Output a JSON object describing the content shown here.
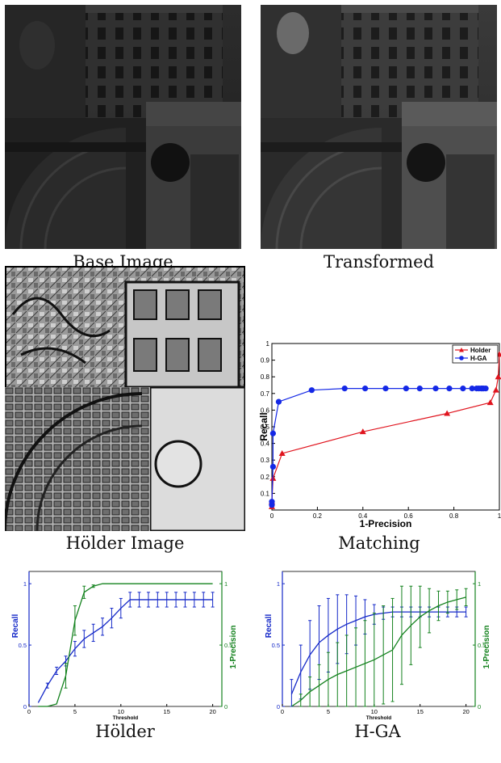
{
  "captions": {
    "base": "Base Image",
    "transformed": "Transformed",
    "holder_image": "Hölder Image",
    "matching": "Matching",
    "holder": "Hölder",
    "hga": "H-GA"
  },
  "chart_data": [
    {
      "type": "line",
      "panel": "Matching",
      "xlabel": "1-Precision",
      "ylabel": "Recall",
      "xlim": [
        0,
        1
      ],
      "ylim": [
        0,
        1
      ],
      "xticks": [
        "0",
        "0.2",
        "0.4",
        "0.6",
        "0.8",
        "1"
      ],
      "yticks": [
        "0.1",
        "0.2",
        "0.3",
        "0.4",
        "0.5",
        "0.6",
        "0.7",
        "0.8",
        "0.9",
        "1"
      ],
      "legend_position": "top-right",
      "series": [
        {
          "name": "Holder",
          "color": "#e0141e",
          "marker": "triangle",
          "x": [
            0.0,
            0.0,
            0.005,
            0.045,
            0.4,
            0.77,
            0.96,
            0.985,
            0.995,
            1.0
          ],
          "y": [
            0.02,
            0.05,
            0.19,
            0.34,
            0.47,
            0.58,
            0.645,
            0.72,
            0.8,
            0.935
          ]
        },
        {
          "name": "H-GA",
          "color": "#1428e6",
          "marker": "circle",
          "x": [
            0.0,
            0.0,
            0.005,
            0.005,
            0.03,
            0.175,
            0.32,
            0.41,
            0.5,
            0.59,
            0.65,
            0.72,
            0.78,
            0.84,
            0.88,
            0.9,
            0.91,
            0.92,
            0.925,
            0.93,
            0.94
          ],
          "y": [
            0.03,
            0.05,
            0.26,
            0.46,
            0.65,
            0.72,
            0.73,
            0.73,
            0.73,
            0.73,
            0.73,
            0.73,
            0.73,
            0.73,
            0.73,
            0.73,
            0.73,
            0.73,
            0.73,
            0.73,
            0.73
          ]
        }
      ]
    },
    {
      "type": "line",
      "panel": "Hölder",
      "xlabel": "Threshold",
      "ylabel_left": "Recall",
      "ylabel_right": "1-Precision",
      "xlim": [
        0,
        21
      ],
      "ylim": [
        0,
        1.1
      ],
      "xticks": [
        "0",
        "5",
        "10",
        "15",
        "20"
      ],
      "yticks_left": [
        "0",
        "0.5",
        "1"
      ],
      "yticks_right": [
        "0",
        "0.5",
        "1"
      ],
      "left_color": "#1428c8",
      "right_color": "#14821e",
      "series": [
        {
          "name": "Recall",
          "axis": "left",
          "x": [
            1,
            2,
            3,
            4,
            5,
            6,
            7,
            8,
            9,
            10,
            11,
            12,
            13,
            14,
            15,
            16,
            17,
            18,
            19,
            20
          ],
          "y": [
            0.03,
            0.17,
            0.29,
            0.37,
            0.47,
            0.55,
            0.6,
            0.65,
            0.72,
            0.8,
            0.87,
            0.87,
            0.87,
            0.87,
            0.87,
            0.87,
            0.87,
            0.87,
            0.87,
            0.87
          ],
          "err": [
            0.0,
            0.02,
            0.03,
            0.04,
            0.06,
            0.07,
            0.07,
            0.07,
            0.08,
            0.08,
            0.06,
            0.06,
            0.06,
            0.06,
            0.06,
            0.06,
            0.06,
            0.06,
            0.06,
            0.06
          ]
        },
        {
          "name": "1-Precision",
          "axis": "right",
          "x": [
            1,
            2,
            3,
            4,
            5,
            6,
            7,
            8,
            9,
            10,
            11,
            12,
            13,
            14,
            15,
            16,
            17,
            18,
            19,
            20
          ],
          "y": [
            0.0,
            0.0,
            0.02,
            0.25,
            0.7,
            0.93,
            0.98,
            1.0,
            1.0,
            1.0,
            1.0,
            1.0,
            1.0,
            1.0,
            1.0,
            1.0,
            1.0,
            1.0,
            1.0,
            1.0
          ],
          "err": [
            0.0,
            0.0,
            0.0,
            0.1,
            0.12,
            0.05,
            0.01,
            0.0,
            0.0,
            0.0,
            0.0,
            0.0,
            0.0,
            0.0,
            0.0,
            0.0,
            0.0,
            0.0,
            0.0,
            0.0
          ]
        }
      ]
    },
    {
      "type": "line",
      "panel": "H-GA",
      "xlabel": "Threshold",
      "ylabel_left": "Recall",
      "ylabel_right": "1-Precision",
      "xlim": [
        0,
        21
      ],
      "ylim": [
        0,
        1.1
      ],
      "xticks": [
        "0",
        "5",
        "10",
        "15",
        "20"
      ],
      "yticks_left": [
        "0",
        "0.5",
        "1"
      ],
      "yticks_right": [
        "0",
        "0.5",
        "1"
      ],
      "left_color": "#1428c8",
      "right_color": "#14821e",
      "series": [
        {
          "name": "Recall",
          "axis": "left",
          "x": [
            1,
            2,
            3,
            4,
            5,
            6,
            7,
            8,
            9,
            10,
            11,
            12,
            13,
            14,
            15,
            16,
            17,
            18,
            19,
            20
          ],
          "y": [
            0.1,
            0.28,
            0.42,
            0.52,
            0.58,
            0.63,
            0.67,
            0.7,
            0.73,
            0.75,
            0.76,
            0.77,
            0.77,
            0.77,
            0.77,
            0.77,
            0.77,
            0.77,
            0.77,
            0.77
          ],
          "err": [
            0.12,
            0.22,
            0.28,
            0.3,
            0.3,
            0.28,
            0.24,
            0.2,
            0.14,
            0.08,
            0.05,
            0.04,
            0.04,
            0.04,
            0.04,
            0.04,
            0.04,
            0.04,
            0.04,
            0.04
          ]
        },
        {
          "name": "1-Precision",
          "axis": "right",
          "x": [
            1,
            2,
            3,
            4,
            5,
            6,
            7,
            8,
            9,
            10,
            11,
            12,
            13,
            14,
            15,
            16,
            17,
            18,
            19,
            20
          ],
          "y": [
            0.0,
            0.05,
            0.12,
            0.17,
            0.22,
            0.26,
            0.29,
            0.32,
            0.35,
            0.38,
            0.42,
            0.46,
            0.58,
            0.66,
            0.73,
            0.78,
            0.82,
            0.85,
            0.87,
            0.89
          ],
          "err": [
            0.0,
            0.05,
            0.12,
            0.17,
            0.22,
            0.26,
            0.29,
            0.32,
            0.35,
            0.38,
            0.4,
            0.42,
            0.4,
            0.32,
            0.25,
            0.18,
            0.12,
            0.09,
            0.08,
            0.07
          ]
        }
      ]
    }
  ]
}
